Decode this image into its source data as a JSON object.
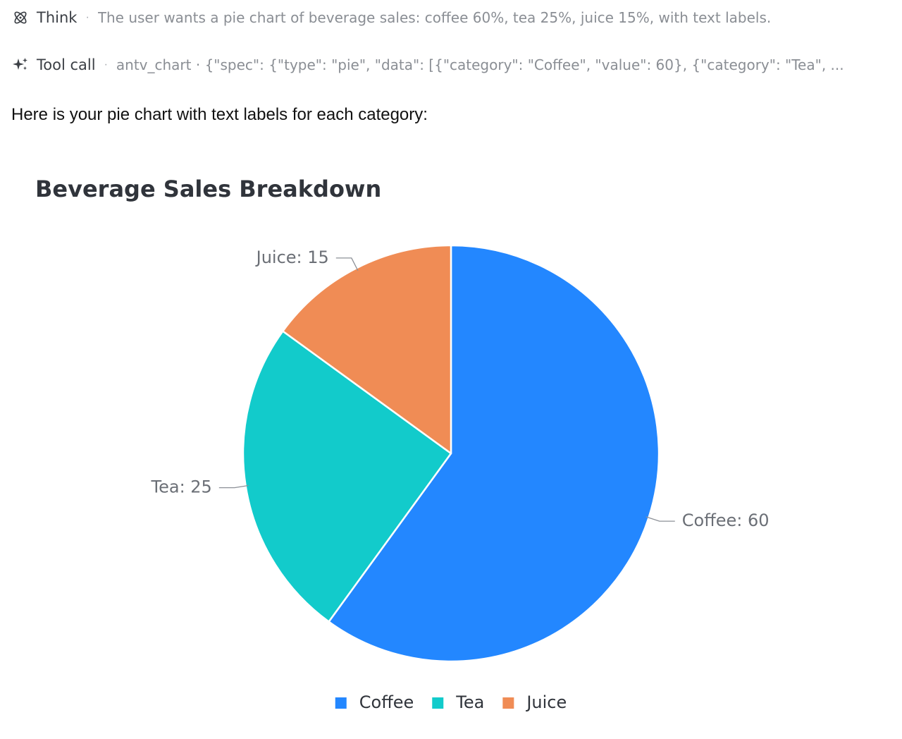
{
  "thinking": {
    "label": "Think",
    "icon": "atom-icon",
    "text": "The user wants a pie chart of beverage sales: coffee 60%, tea 25%, juice 15%, with text labels."
  },
  "tool_call": {
    "label": "Tool call",
    "icon": "sparkle-icon",
    "text": "antv_chart · {\"spec\": {\"type\": \"pie\", \"data\": [{\"category\": \"Coffee\", \"value\": 60}, {\"category\": \"Tea\", ..."
  },
  "reply": {
    "text": "Here is your pie chart with text labels for each category:"
  },
  "chart_data": {
    "type": "pie",
    "title": "Beverage Sales Breakdown",
    "categories": [
      "Coffee",
      "Tea",
      "Juice"
    ],
    "values": [
      60,
      25,
      15
    ],
    "slice_labels": [
      "Coffee: 60",
      "Tea: 25",
      "Juice: 15"
    ],
    "colors": [
      "#2387ff",
      "#12cbcb",
      "#f08c55"
    ],
    "legend_placement": "bottom",
    "start_angle": "top, clockwise"
  }
}
